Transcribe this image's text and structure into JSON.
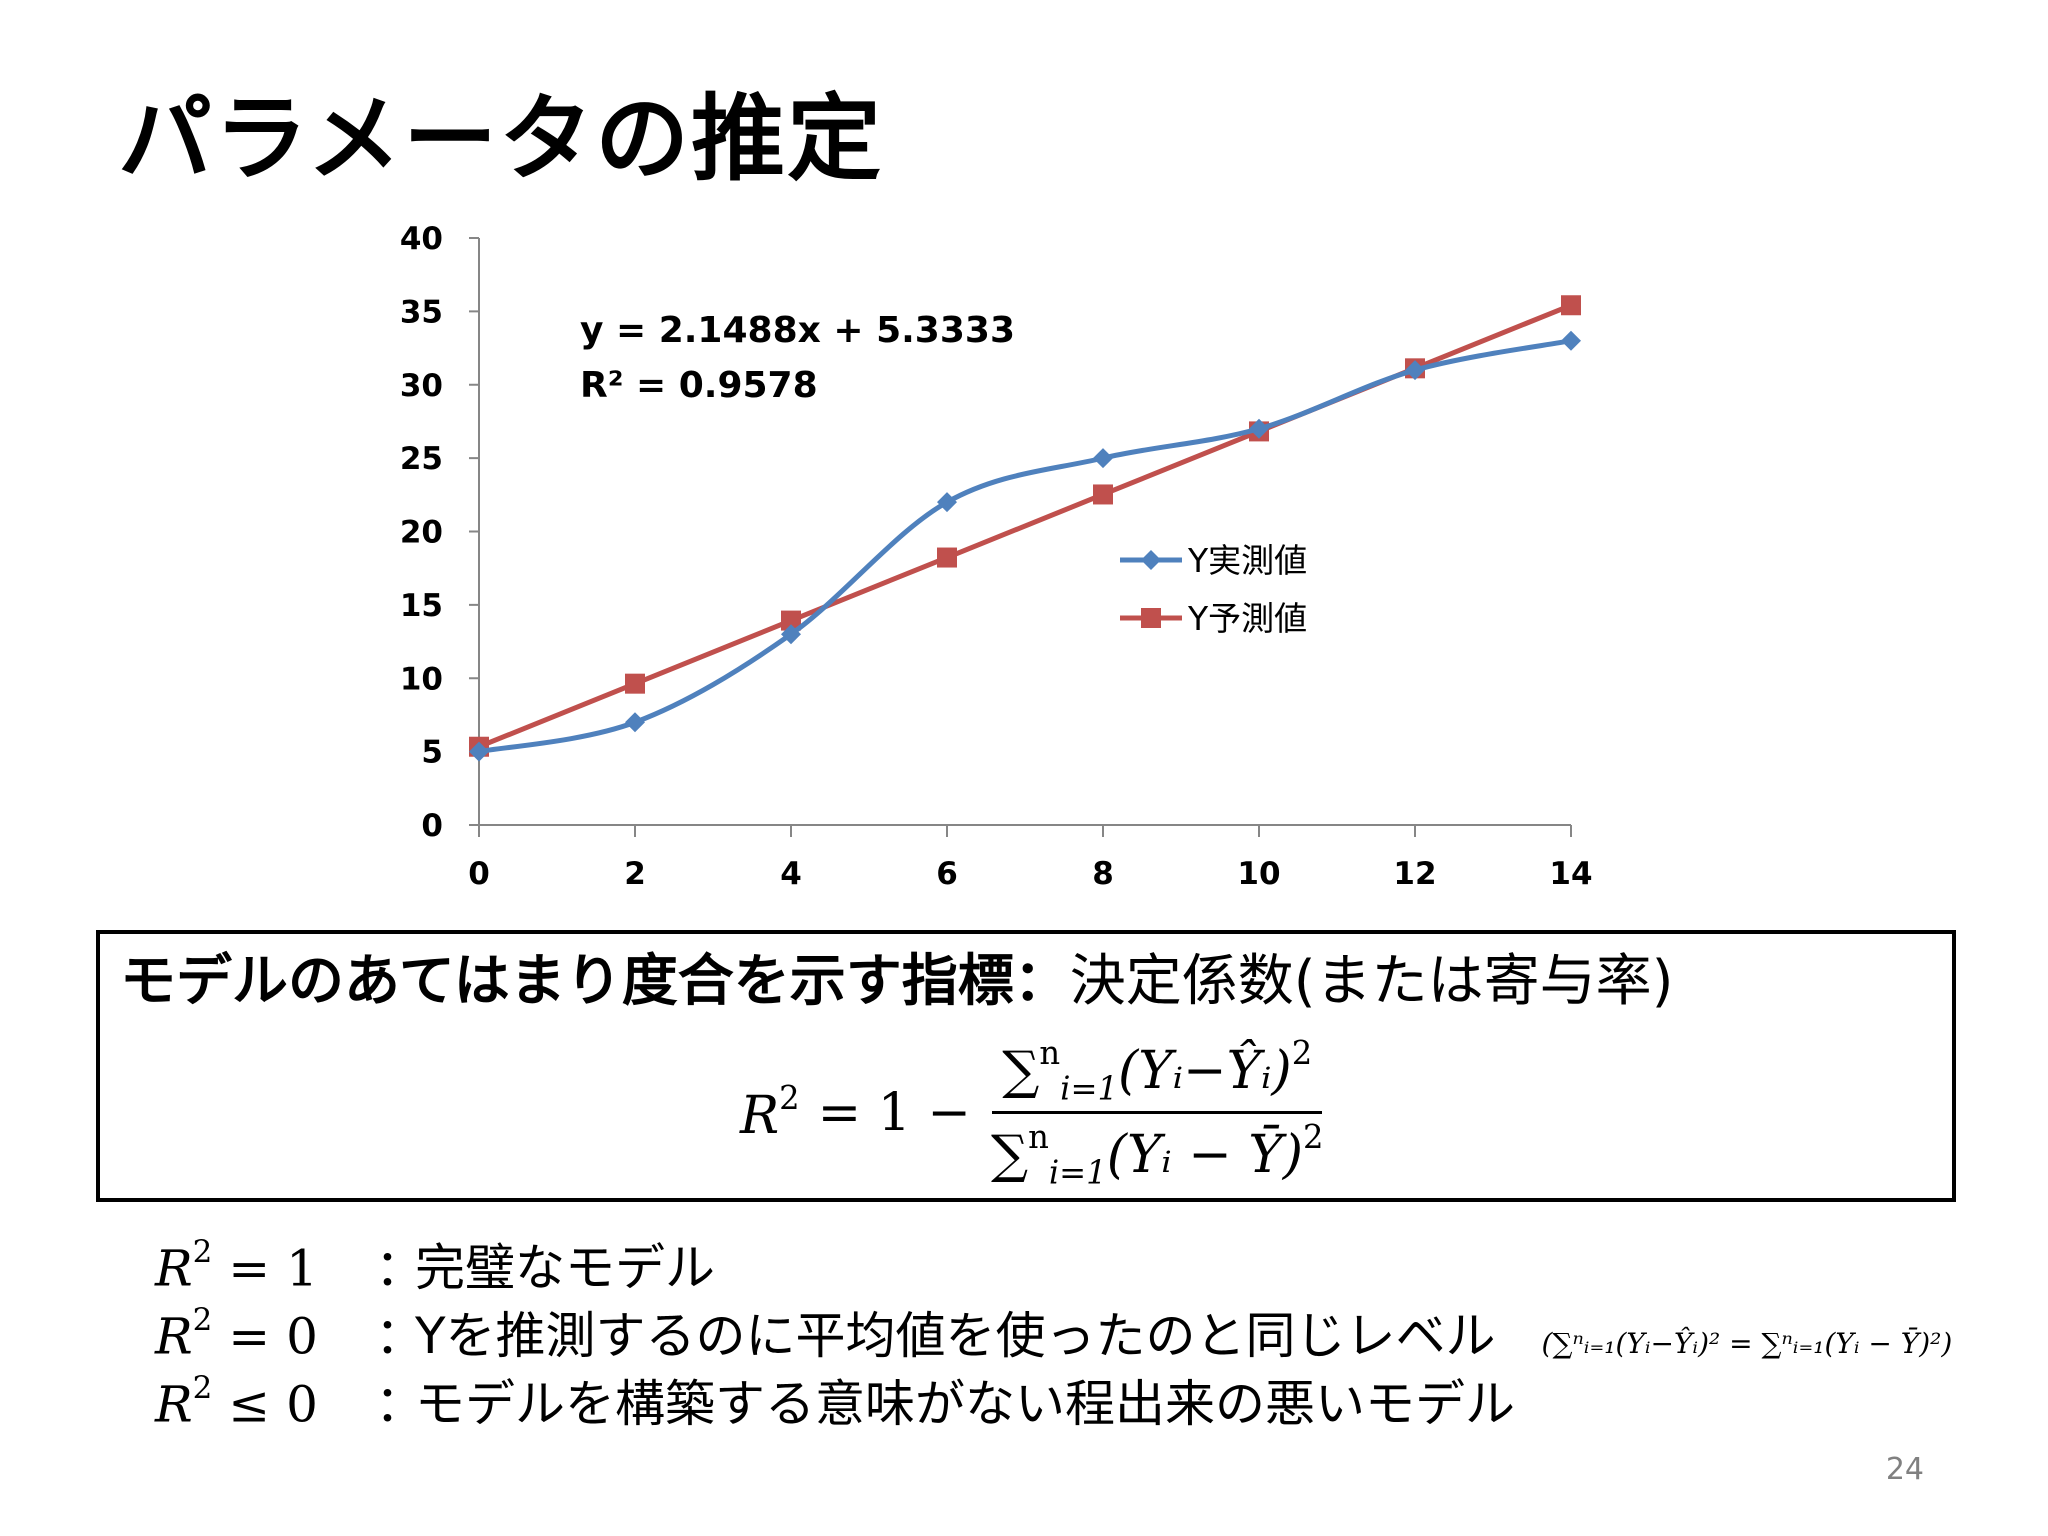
{
  "title": "パラメータの推定",
  "chart_data": {
    "type": "line",
    "x": [
      0,
      2,
      4,
      6,
      8,
      10,
      12,
      14
    ],
    "series": [
      {
        "name": "Y実測値",
        "values": [
          5,
          7,
          13,
          22,
          25,
          27,
          31,
          33
        ],
        "color": "#4f81bd",
        "marker": "diamond",
        "smooth": true
      },
      {
        "name": "Y予測値",
        "values": [
          5.3333,
          9.631,
          13.929,
          18.226,
          22.524,
          26.821,
          31.119,
          35.417
        ],
        "color": "#c0504d",
        "marker": "square",
        "smooth": false
      }
    ],
    "xlim": [
      0,
      14
    ],
    "ylim": [
      0,
      40
    ],
    "xticks": [
      0,
      2,
      4,
      6,
      8,
      10,
      12,
      14
    ],
    "yticks": [
      0,
      5,
      10,
      15,
      20,
      25,
      30,
      35,
      40
    ],
    "trendline_equation": "y = 2.1488x + 5.3333",
    "trendline_r2": "R² = 0.9578",
    "legend_position": "right",
    "grid": false
  },
  "definition": {
    "heading_bold": "モデルのあてはまり度合を示す指標：",
    "heading_normal": "決定係数(または寄与率)",
    "formula": {
      "lhs_symbol": "R",
      "exponent": "2",
      "equals": "= 1 −",
      "numerator_sum": "∑",
      "numerator_sub": "i=1",
      "numerator_sup": "n",
      "numerator_term": "(Yᵢ−Ŷᵢ)",
      "numerator_exp": "2",
      "denominator_sum": "∑",
      "denominator_sub": "i=1",
      "denominator_sup": "n",
      "denominator_term": "(Yᵢ − Ȳ)",
      "denominator_exp": "2"
    }
  },
  "conditions": [
    {
      "lhs": "R",
      "exp": "2",
      "rel": " = 1",
      "colon": "：",
      "desc": "完璧なモデル",
      "note": ""
    },
    {
      "lhs": "R",
      "exp": "2",
      "rel": " = 0",
      "colon": "：",
      "desc": "Yを推測するのに平均値を使ったのと同じレベル",
      "note": "(∑ⁿᵢ₌₁(Yᵢ−Ŷᵢ)² = ∑ⁿᵢ₌₁(Yᵢ − Ȳ)²)"
    },
    {
      "lhs": "R",
      "exp": "2",
      "rel": " ≤ 0",
      "colon": "：",
      "desc": "モデルを構築する意味がない程出来の悪いモデル",
      "note": ""
    }
  ],
  "page_number": "24"
}
